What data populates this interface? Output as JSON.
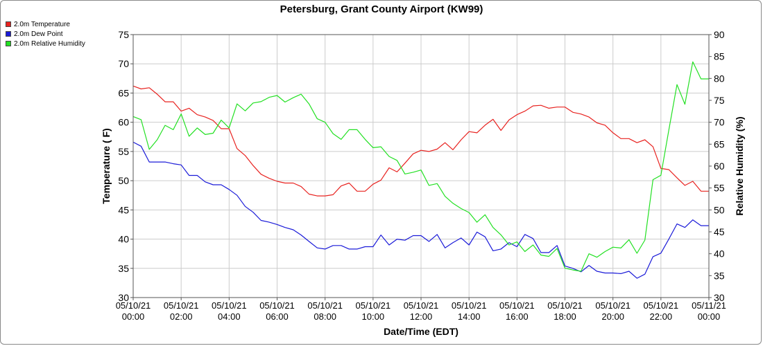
{
  "chart_data": {
    "type": "line",
    "title": "Petersburg, Grant County Airport (KW99)",
    "xlabel": "Date/Time (EDT)",
    "ylabel": "Temperature ( F)",
    "y2label": "Relative Humidity (%)",
    "ylim": [
      30,
      75
    ],
    "y2lim": [
      30,
      90
    ],
    "xlim_hours": [
      0,
      24
    ],
    "grid": true,
    "legend_position": "top-left",
    "x_ticks": [
      {
        "hour": 0,
        "date": "05/10/21",
        "time": "00:00"
      },
      {
        "hour": 2,
        "date": "05/10/21",
        "time": "02:00"
      },
      {
        "hour": 4,
        "date": "05/10/21",
        "time": "04:00"
      },
      {
        "hour": 6,
        "date": "05/10/21",
        "time": "06:00"
      },
      {
        "hour": 8,
        "date": "05/10/21",
        "time": "08:00"
      },
      {
        "hour": 10,
        "date": "05/10/21",
        "time": "10:00"
      },
      {
        "hour": 12,
        "date": "05/10/21",
        "time": "12:00"
      },
      {
        "hour": 14,
        "date": "05/10/21",
        "time": "14:00"
      },
      {
        "hour": 16,
        "date": "05/10/21",
        "time": "16:00"
      },
      {
        "hour": 18,
        "date": "05/10/21",
        "time": "18:00"
      },
      {
        "hour": 20,
        "date": "05/10/21",
        "time": "20:00"
      },
      {
        "hour": 22,
        "date": "05/10/21",
        "time": "22:00"
      },
      {
        "hour": 24,
        "date": "05/11/21",
        "time": "00:00"
      }
    ],
    "y_ticks": [
      30,
      35,
      40,
      45,
      50,
      55,
      60,
      65,
      70,
      75
    ],
    "y2_ticks": [
      30,
      35,
      40,
      45,
      50,
      55,
      60,
      65,
      70,
      75,
      80,
      85,
      90
    ],
    "series": [
      {
        "name": "2.0m Temperature",
        "color": "#e8221f",
        "axis": "left",
        "x": [
          0,
          0.33,
          0.67,
          1,
          1.33,
          1.67,
          2,
          2.33,
          2.67,
          3,
          3.33,
          3.67,
          4,
          4.33,
          4.67,
          5,
          5.33,
          5.67,
          6,
          6.33,
          6.67,
          7,
          7.33,
          7.67,
          8,
          8.33,
          8.67,
          9,
          9.33,
          9.67,
          10,
          10.33,
          10.67,
          11,
          11.33,
          11.67,
          12,
          12.33,
          12.67,
          13,
          13.33,
          13.67,
          14,
          14.33,
          14.67,
          15,
          15.33,
          15.67,
          16,
          16.33,
          16.67,
          17,
          17.33,
          17.67,
          18,
          18.33,
          18.67,
          19,
          19.33,
          19.67,
          20,
          20.33,
          20.67,
          21,
          21.33,
          21.67,
          22,
          22.33,
          22.67,
          23,
          23.33,
          23.67,
          24
        ],
        "values": [
          66.2,
          65.7,
          65.9,
          64.8,
          63.5,
          63.5,
          61.9,
          62.4,
          61.3,
          60.9,
          60.3,
          58.9,
          58.9,
          55.5,
          54.3,
          52.6,
          51.1,
          50.4,
          49.9,
          49.6,
          49.6,
          49.0,
          47.7,
          47.4,
          47.4,
          47.6,
          49.1,
          49.6,
          48.2,
          48.2,
          49.4,
          50.1,
          52.2,
          51.5,
          53.0,
          54.6,
          55.2,
          55.0,
          55.4,
          56.5,
          55.3,
          57.0,
          58.4,
          58.2,
          59.5,
          60.5,
          58.6,
          60.4,
          61.3,
          61.9,
          62.8,
          62.9,
          62.4,
          62.6,
          62.6,
          61.7,
          61.4,
          60.9,
          59.9,
          59.5,
          58.2,
          57.2,
          57.2,
          56.5,
          57.0,
          55.8,
          52.1,
          51.9,
          50.5,
          49.2,
          49.9,
          48.2,
          48.2
        ]
      },
      {
        "name": "2.0m Dew Point",
        "color": "#1a1ad8",
        "axis": "left",
        "x": [
          0,
          0.33,
          0.67,
          1,
          1.33,
          1.67,
          2,
          2.33,
          2.67,
          3,
          3.33,
          3.67,
          4,
          4.33,
          4.67,
          5,
          5.33,
          5.67,
          6,
          6.33,
          6.67,
          7,
          7.33,
          7.67,
          8,
          8.33,
          8.67,
          9,
          9.33,
          9.67,
          10,
          10.33,
          10.67,
          11,
          11.33,
          11.67,
          12,
          12.33,
          12.67,
          13,
          13.33,
          13.67,
          14,
          14.33,
          14.67,
          15,
          15.33,
          15.67,
          16,
          16.33,
          16.67,
          17,
          17.33,
          17.67,
          18,
          18.33,
          18.67,
          19,
          19.33,
          19.67,
          20,
          20.33,
          20.67,
          21,
          21.33,
          21.67,
          22,
          22.33,
          22.67,
          23,
          23.33,
          23.67,
          24
        ],
        "values": [
          56.6,
          55.9,
          53.2,
          53.2,
          53.2,
          52.9,
          52.7,
          50.9,
          50.9,
          49.8,
          49.3,
          49.3,
          48.5,
          47.5,
          45.6,
          44.6,
          43.2,
          42.9,
          42.5,
          42.0,
          41.6,
          40.7,
          39.6,
          38.5,
          38.3,
          38.9,
          38.9,
          38.3,
          38.3,
          38.7,
          38.7,
          40.7,
          39.0,
          40.0,
          39.8,
          40.6,
          40.6,
          39.6,
          40.8,
          38.5,
          39.4,
          40.2,
          39.0,
          41.2,
          40.4,
          38.0,
          38.3,
          39.4,
          38.7,
          40.8,
          40.1,
          37.7,
          37.7,
          38.9,
          35.4,
          35.0,
          34.4,
          35.5,
          34.5,
          34.2,
          34.2,
          34.1,
          34.5,
          33.3,
          34.0,
          37.0,
          37.6,
          40.0,
          42.6,
          42.0,
          43.3,
          42.3,
          42.3
        ]
      },
      {
        "name": "2.0m Relative Humidity",
        "color": "#22e022",
        "axis": "right",
        "x": [
          0,
          0.33,
          0.67,
          1,
          1.33,
          1.67,
          2,
          2.33,
          2.67,
          3,
          3.33,
          3.67,
          4,
          4.33,
          4.67,
          5,
          5.33,
          5.67,
          6,
          6.33,
          6.67,
          7,
          7.33,
          7.67,
          8,
          8.33,
          8.67,
          9,
          9.33,
          9.67,
          10,
          10.33,
          10.67,
          11,
          11.33,
          11.67,
          12,
          12.33,
          12.67,
          13,
          13.33,
          13.67,
          14,
          14.33,
          14.67,
          15,
          15.33,
          15.67,
          16,
          16.33,
          16.67,
          17,
          17.33,
          17.67,
          18,
          18.33,
          18.67,
          19,
          19.33,
          19.67,
          20,
          20.33,
          20.67,
          21,
          21.33,
          21.67,
          22,
          22.33,
          22.67,
          23,
          23.33,
          23.67,
          24
        ],
        "values": [
          71.3,
          70.6,
          63.8,
          66.0,
          69.3,
          68.3,
          71.9,
          66.8,
          68.7,
          67.2,
          67.5,
          70.5,
          68.7,
          74.2,
          72.6,
          74.4,
          74.7,
          75.7,
          76.1,
          74.6,
          75.6,
          76.4,
          74.2,
          70.8,
          70.0,
          67.4,
          66.1,
          68.3,
          68.3,
          66.1,
          64.2,
          64.4,
          62.2,
          61.3,
          58.2,
          58.6,
          59.1,
          55.6,
          56.0,
          53.1,
          51.5,
          50.3,
          49.4,
          47.2,
          48.9,
          46.0,
          44.3,
          42.0,
          42.7,
          40.5,
          42.0,
          39.7,
          39.4,
          41.2,
          36.7,
          36.3,
          36.0,
          40.0,
          39.2,
          40.5,
          41.5,
          41.3,
          43.2,
          40.1,
          43.1,
          56.9,
          57.9,
          68.2,
          78.6,
          74.1,
          83.8,
          79.9,
          79.9
        ]
      }
    ]
  }
}
